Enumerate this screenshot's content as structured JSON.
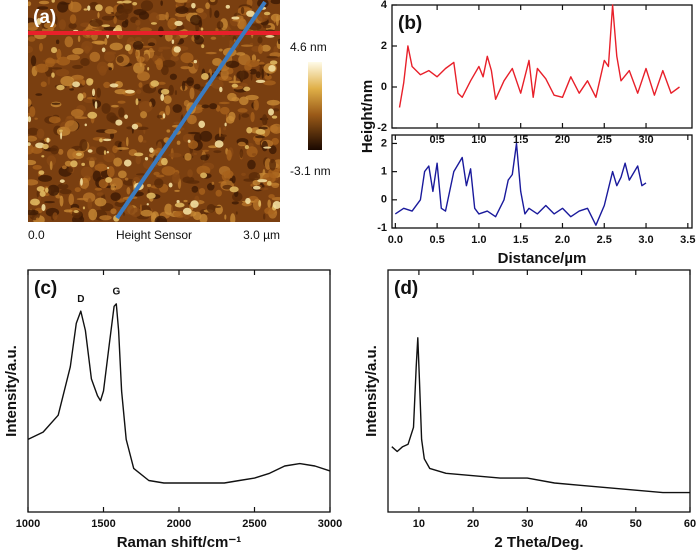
{
  "chart_data": [
    {
      "type": "image",
      "panel_label": "(a)",
      "xlabel": "Height Sensor",
      "xticks": [
        {
          "value": 0,
          "label": "0.0"
        },
        {
          "value": 3.0,
          "label": "3.0 µm"
        }
      ],
      "colorbar_ticks": [
        {
          "value": 4.6,
          "label": "4.6 nm"
        },
        {
          "value": -3.1,
          "label": "-3.1 nm"
        }
      ]
    },
    {
      "type": "line",
      "panel_label": "(b)",
      "ylabel": "Height/nm",
      "color": "#e8202a",
      "xlim": [
        -0.04,
        3.55
      ],
      "ylim": [
        -2,
        4
      ],
      "xticks": [
        0.5,
        {
          "value": 1.0,
          "label": "1.0"
        },
        1.5,
        {
          "value": 2.0,
          "label": "2.0"
        },
        2.5,
        {
          "value": 3.0,
          "label": "3.0"
        }
      ],
      "yticks": [
        -2,
        0,
        2,
        4
      ],
      "x": [
        0.05,
        0.1,
        0.15,
        0.2,
        0.3,
        0.4,
        0.5,
        0.6,
        0.7,
        0.75,
        0.8,
        0.9,
        1.0,
        1.05,
        1.1,
        1.15,
        1.2,
        1.3,
        1.4,
        1.5,
        1.6,
        1.65,
        1.7,
        1.8,
        1.9,
        2.0,
        2.1,
        2.2,
        2.3,
        2.4,
        2.5,
        2.55,
        2.6,
        2.65,
        2.7,
        2.8,
        2.9,
        3.0,
        3.1,
        3.2,
        3.3,
        3.4
      ],
      "values": [
        -1.0,
        0.2,
        2.0,
        1.0,
        0.6,
        0.8,
        0.5,
        0.9,
        1.2,
        -0.3,
        -0.5,
        0.3,
        1.0,
        0.5,
        1.5,
        0.8,
        -0.6,
        0.3,
        0.9,
        -0.3,
        1.3,
        -0.5,
        0.9,
        0.4,
        -0.4,
        -0.5,
        0.5,
        -0.3,
        0.3,
        -0.5,
        1.3,
        1.0,
        4.0,
        1.5,
        0.3,
        0.8,
        -0.3,
        0.9,
        -0.4,
        0.8,
        -0.3,
        0.0
      ]
    },
    {
      "type": "line",
      "xlabel": "Distance/µm",
      "color": "#1a1a9c",
      "xlim": [
        -0.04,
        3.55
      ],
      "ylim": [
        -1,
        2.3
      ],
      "xticks": [
        {
          "value": 0.0,
          "label": "0.0"
        },
        0.5,
        {
          "value": 1.0,
          "label": "1.0"
        },
        1.5,
        {
          "value": 2.0,
          "label": "2.0"
        },
        2.5,
        {
          "value": 3.0,
          "label": "3.0"
        },
        3.5
      ],
      "yticks": [
        -1,
        0,
        1,
        2
      ],
      "x": [
        0.0,
        0.1,
        0.2,
        0.3,
        0.35,
        0.4,
        0.45,
        0.5,
        0.55,
        0.6,
        0.7,
        0.8,
        0.85,
        0.9,
        0.95,
        1.0,
        1.1,
        1.2,
        1.3,
        1.35,
        1.4,
        1.45,
        1.5,
        1.55,
        1.6,
        1.7,
        1.8,
        1.9,
        2.0,
        2.1,
        2.2,
        2.3,
        2.4,
        2.5,
        2.6,
        2.65,
        2.7,
        2.75,
        2.8,
        2.9,
        2.95,
        3.0
      ],
      "values": [
        -0.5,
        -0.3,
        -0.4,
        0.0,
        1.0,
        1.2,
        0.3,
        1.3,
        -0.3,
        -0.4,
        1.0,
        1.5,
        0.5,
        1.1,
        -0.3,
        -0.5,
        -0.4,
        -0.6,
        0.0,
        0.7,
        0.9,
        2.0,
        0.3,
        -0.5,
        -0.3,
        -0.5,
        -0.2,
        -0.5,
        -0.3,
        -0.6,
        -0.4,
        -0.3,
        -0.9,
        -0.2,
        1.0,
        0.5,
        0.8,
        1.3,
        0.7,
        1.2,
        0.5,
        0.6
      ]
    },
    {
      "type": "line",
      "panel_label": "(c)",
      "xlabel": "Raman shift/cm⁻¹",
      "ylabel": "Intensity/a.u.",
      "color": "#111111",
      "xlim": [
        1000,
        3000
      ],
      "ylim": [
        0,
        100
      ],
      "xticks": [
        1000,
        1500,
        2000,
        2500,
        3000
      ],
      "annotations": [
        {
          "text": "D",
          "x": 1350
        },
        {
          "text": "G",
          "x": 1585
        }
      ],
      "x": [
        1000,
        1100,
        1200,
        1280,
        1320,
        1350,
        1380,
        1420,
        1460,
        1480,
        1500,
        1540,
        1570,
        1585,
        1600,
        1620,
        1650,
        1700,
        1800,
        1900,
        2000,
        2100,
        2200,
        2300,
        2400,
        2500,
        2600,
        2700,
        2800,
        2900,
        3000
      ],
      "values": [
        30,
        33,
        40,
        60,
        78,
        83,
        75,
        55,
        48,
        46,
        50,
        70,
        85,
        86,
        75,
        50,
        30,
        18,
        13,
        12,
        12,
        12,
        12,
        12,
        13,
        14,
        16,
        19,
        20,
        19,
        17
      ]
    },
    {
      "type": "line",
      "panel_label": "(d)",
      "xlabel": "2 Theta/Deg.",
      "ylabel": "Intensity/a.u.",
      "color": "#111111",
      "xlim": [
        4.3,
        60
      ],
      "ylim": [
        0,
        100
      ],
      "xticks": [
        10,
        20,
        30,
        40,
        50,
        60
      ],
      "x": [
        5,
        6,
        7,
        8,
        9,
        9.5,
        9.8,
        10.1,
        10.5,
        11,
        12,
        15,
        20,
        25,
        30,
        35,
        40,
        45,
        50,
        55,
        60
      ],
      "values": [
        27,
        25,
        27,
        28,
        35,
        60,
        72,
        55,
        30,
        22,
        18,
        16,
        15,
        14,
        14,
        12,
        11,
        10,
        9,
        8,
        8
      ]
    }
  ]
}
